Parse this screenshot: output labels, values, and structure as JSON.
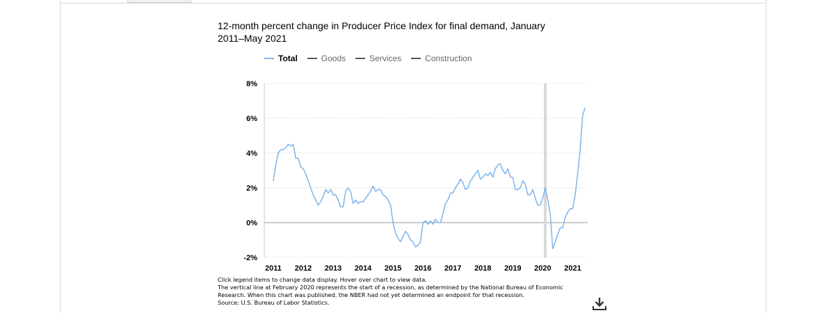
{
  "title": "12-month percent change in Producer Price Index for final demand, January 2011–May 2021",
  "legend": [
    {
      "label": "Total",
      "color": "#7cb5ec",
      "active": true
    },
    {
      "label": "Goods",
      "color": "#555555",
      "active": false
    },
    {
      "label": "Services",
      "color": "#555555",
      "active": false
    },
    {
      "label": "Construction",
      "color": "#555555",
      "active": false
    }
  ],
  "notes": [
    "Click legend items to change data display. Hover over chart to view data.",
    "The vertical line at February 2020 represents the start of a recession, as determined by the National Bureau of Economic",
    "Research. When this chart was published, the NBER had not yet determined an endpoint for that recession.",
    "Source: U.S. Bureau of Labor Statistics."
  ],
  "download_icon": "download-icon",
  "chart_data": {
    "type": "line",
    "title": "12-month percent change in Producer Price Index for final demand, January 2011–May 2021",
    "xlabel": "",
    "ylabel": "",
    "y_ticks": [
      "-2%",
      "0%",
      "2%",
      "4%",
      "6%",
      "8%"
    ],
    "x_ticks": [
      "2011",
      "2012",
      "2013",
      "2014",
      "2015",
      "2016",
      "2017",
      "2018",
      "2019",
      "2020",
      "2021"
    ],
    "ylim": [
      -2,
      8
    ],
    "grid": "horizontal dotted",
    "recession_start": "2020-02",
    "recession_color": "#d9d9d9",
    "series": [
      {
        "name": "Total",
        "color": "#7cb5ec",
        "start": "2011-01",
        "values": [
          2.4,
          3.3,
          4.0,
          4.2,
          4.2,
          4.3,
          4.5,
          4.4,
          4.5,
          3.7,
          3.7,
          3.2,
          3.1,
          2.8,
          2.4,
          2.0,
          1.6,
          1.3,
          1.0,
          1.2,
          1.5,
          1.9,
          1.7,
          1.9,
          1.6,
          1.6,
          1.3,
          0.9,
          0.9,
          1.8,
          2.0,
          1.8,
          1.1,
          1.3,
          1.1,
          1.2,
          1.2,
          1.4,
          1.6,
          1.8,
          2.1,
          1.8,
          1.9,
          1.9,
          1.6,
          1.5,
          1.3,
          1.0,
          0.0,
          -0.6,
          -0.9,
          -1.1,
          -0.8,
          -0.5,
          -0.7,
          -1.0,
          -1.1,
          -1.4,
          -1.3,
          -1.1,
          0.0,
          0.1,
          -0.1,
          0.1,
          -0.1,
          0.2,
          0.0,
          0.0,
          0.5,
          1.1,
          1.3,
          1.7,
          1.7,
          2.0,
          2.2,
          2.5,
          2.3,
          1.9,
          2.0,
          2.4,
          2.6,
          2.8,
          3.0,
          2.5,
          2.6,
          2.8,
          2.7,
          2.9,
          2.6,
          3.1,
          3.3,
          3.4,
          3.0,
          2.8,
          3.1,
          2.6,
          2.6,
          1.9,
          1.9,
          2.0,
          2.4,
          2.2,
          1.6,
          1.6,
          1.9,
          1.4,
          1.0,
          1.0,
          1.4,
          2.0,
          1.3,
          0.5,
          -1.5,
          -1.1,
          -0.7,
          -0.3,
          -0.3,
          0.3,
          0.6,
          0.8,
          0.8,
          1.6,
          2.8,
          4.2,
          6.2,
          6.6
        ]
      }
    ]
  }
}
